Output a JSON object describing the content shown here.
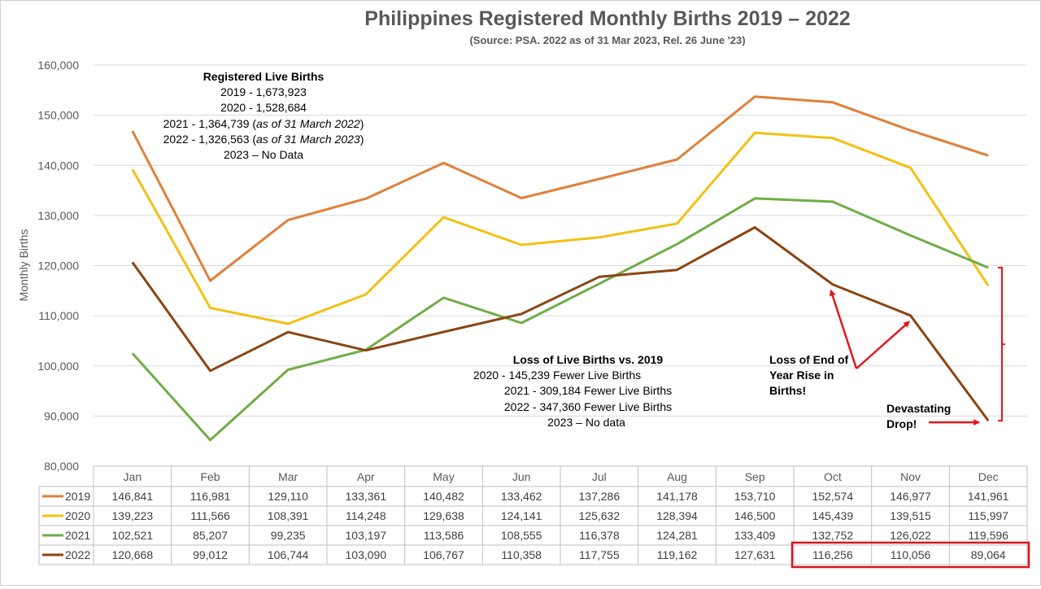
{
  "chart_data": {
    "type": "line",
    "title": "Philippines Registered Monthly Births 2019 – 2022",
    "subtitle": "(Source: PSA.  2022 as of 31 Mar 2023, Rel. 26 June '23)",
    "ylabel": "Monthly Births",
    "ylim": [
      80000,
      160000
    ],
    "yticks": [
      80000,
      90000,
      100000,
      110000,
      120000,
      130000,
      140000,
      150000,
      160000
    ],
    "ytick_labels": [
      "80,000",
      "90,000",
      "100,000",
      "110,000",
      "120,000",
      "130,000",
      "140,000",
      "150,000",
      "160,000"
    ],
    "grid": true,
    "legend": "data table below plot",
    "categories": [
      "Jan",
      "Feb",
      "Mar",
      "Apr",
      "May",
      "Jun",
      "Jul",
      "Aug",
      "Sep",
      "Oct",
      "Nov",
      "Dec"
    ],
    "series": [
      {
        "name": "2019",
        "color": "#e0803a",
        "values": [
          146841,
          116981,
          129110,
          133361,
          140482,
          133462,
          137286,
          141178,
          153710,
          152574,
          146977,
          141961
        ],
        "labels": [
          "146,841",
          "116,981",
          "129,110",
          "133,361",
          "140,482",
          "133,462",
          "137,286",
          "141,178",
          "153,710",
          "152,574",
          "146,977",
          "141,961"
        ]
      },
      {
        "name": "2020",
        "color": "#f2c114",
        "values": [
          139223,
          111566,
          108391,
          114248,
          129638,
          124141,
          125632,
          128394,
          146500,
          145439,
          139515,
          115997
        ],
        "labels": [
          "139,223",
          "111,566",
          "108,391",
          "114,248",
          "129,638",
          "124,141",
          "125,632",
          "128,394",
          "146,500",
          "145,439",
          "139,515",
          "115,997"
        ]
      },
      {
        "name": "2021",
        "color": "#70ad47",
        "values": [
          102521,
          85207,
          99235,
          103197,
          113586,
          108555,
          116378,
          124281,
          133409,
          132752,
          126022,
          119596
        ],
        "labels": [
          "102,521",
          "85,207",
          "99,235",
          "103,197",
          "113,586",
          "108,555",
          "116,378",
          "124,281",
          "133,409",
          "132,752",
          "126,022",
          "119,596"
        ]
      },
      {
        "name": "2022",
        "color": "#8b4513",
        "values": [
          120668,
          99012,
          106744,
          103090,
          106767,
          110358,
          117755,
          119162,
          127631,
          116256,
          110056,
          89064
        ],
        "labels": [
          "120,668",
          "99,012",
          "106,744",
          "103,090",
          "106,767",
          "110,358",
          "117,755",
          "119,162",
          "127,631",
          "116,256",
          "110,056",
          "89,064"
        ]
      }
    ],
    "annotations": {
      "registered": {
        "heading": "Registered Live Births",
        "l2019": "2019 - 1,673,923",
        "l2020": "2020 - 1,528,684",
        "l2021_main": "2021 - 1,364,739 (",
        "l2021_italic": "as of 31 March 2022",
        "l2021_end": ")",
        "l2022_main": "2022 - 1,326,563 (",
        "l2022_italic": "as of 31 March 2023",
        "l2022_end": ")",
        "l2023": "2023 – No Data"
      },
      "loss": {
        "heading": "Loss of Live Births vs. 2019",
        "l2020": "2020 - 145,239 Fewer Live Births",
        "l2021": "2021 - 309,184 Fewer Live Births",
        "l2022": "2022 - 347,360 Fewer Live Births",
        "l2023": "2023 – No data"
      },
      "end_of_year": [
        "Loss of End of",
        "Year Rise in",
        "Births!"
      ],
      "drop": [
        "Devastating",
        "Drop!"
      ]
    },
    "arrow_color": "#e8141c",
    "highlight_color": "#d9141c"
  }
}
